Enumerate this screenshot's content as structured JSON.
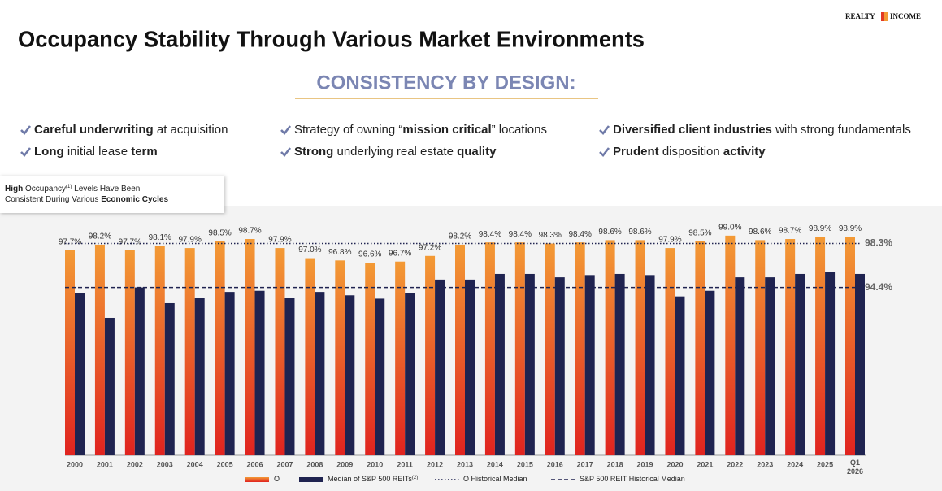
{
  "header": {
    "title": "Occupancy Stability Through Various Market Environments",
    "logo": [
      "REALTY",
      "INCOME"
    ],
    "subtitle": "CONSISTENCY BY DESIGN:"
  },
  "bullets": [
    [
      {
        "text": "Careful underwriting",
        "bold": true
      },
      {
        "text": " at acquisition"
      }
    ],
    [
      {
        "text": "Strategy of owning “"
      },
      {
        "text": "mission critical",
        "bold": true
      },
      {
        "text": "” locations"
      }
    ],
    [
      {
        "text": "Diversified client industries",
        "bold": true
      },
      {
        "text": " with strong fundamentals"
      }
    ],
    [
      {
        "text": "Long",
        "bold": true
      },
      {
        "text": " initial lease "
      },
      {
        "text": "term",
        "bold": true
      }
    ],
    [
      {
        "text": "Strong",
        "bold": true
      },
      {
        "text": " underlying real estate "
      },
      {
        "text": "quality",
        "bold": true
      }
    ],
    [
      {
        "text": "Prudent",
        "bold": true
      },
      {
        "text": " disposition "
      },
      {
        "text": "activity",
        "bold": true
      }
    ]
  ],
  "callout": [
    [
      {
        "text": "High",
        "bold": true
      },
      {
        "text": " Occupancy"
      },
      {
        "text": "(1)",
        "sup": true
      },
      {
        "text": " Levels Have Been"
      }
    ],
    [
      {
        "text": "Consistent During Various "
      },
      {
        "text": "Economic Cycles",
        "bold": true
      }
    ]
  ],
  "chart_data": {
    "type": "bar",
    "categories": [
      "2000",
      "2001",
      "2002",
      "2003",
      "2004",
      "2005",
      "2006",
      "2007",
      "2008",
      "2009",
      "2010",
      "2011",
      "2012",
      "2013",
      "2014",
      "2015",
      "2016",
      "2017",
      "2018",
      "2019",
      "2020",
      "2021",
      "2022",
      "2023",
      "2024",
      "2025",
      "Q1 2026"
    ],
    "series": [
      {
        "name": "O",
        "color": "#f39a35",
        "values": [
          97.7,
          98.2,
          97.7,
          98.1,
          97.9,
          98.5,
          98.7,
          97.9,
          97.0,
          96.8,
          96.6,
          96.7,
          97.2,
          98.2,
          98.4,
          98.4,
          98.3,
          98.4,
          98.6,
          98.6,
          97.9,
          98.5,
          99.0,
          98.6,
          98.7,
          98.9,
          98.9
        ],
        "value_labels": [
          "97.7%",
          "98.2%",
          "97.7%",
          "98.1%",
          "97.9%",
          "98.5%",
          "98.7%",
          "97.9%",
          "97.0%",
          "96.8%",
          "96.6%",
          "96.7%",
          "97.2%",
          "98.2%",
          "98.4%",
          "98.4%",
          "98.3%",
          "98.4%",
          "98.6%",
          "98.6%",
          "97.9%",
          "98.5%",
          "99.0%",
          "98.6%",
          "98.7%",
          "98.9%",
          "98.9%"
        ]
      },
      {
        "name": "Median of S&P 500 REITs",
        "name_note": "(2)",
        "color": "#1f2350",
        "values": [
          93.9,
          91.7,
          94.4,
          93.0,
          93.5,
          94.0,
          94.1,
          93.5,
          94.0,
          93.7,
          93.4,
          93.9,
          95.1,
          95.1,
          95.6,
          95.6,
          95.3,
          95.5,
          95.6,
          95.5,
          93.6,
          94.1,
          95.3,
          95.3,
          95.6,
          95.8,
          95.6
        ]
      }
    ],
    "reference_lines": [
      {
        "name": "O Historical Median",
        "value": 98.3,
        "value_label": "98.3%",
        "color": "#1f2350",
        "style": "dotted"
      },
      {
        "name": "S&P 500 REIT Historical Median",
        "value": 94.4,
        "value_label": "94.4%",
        "color": "#1f2350",
        "style": "dashed"
      }
    ],
    "ylim": [
      79.5,
      100
    ]
  }
}
